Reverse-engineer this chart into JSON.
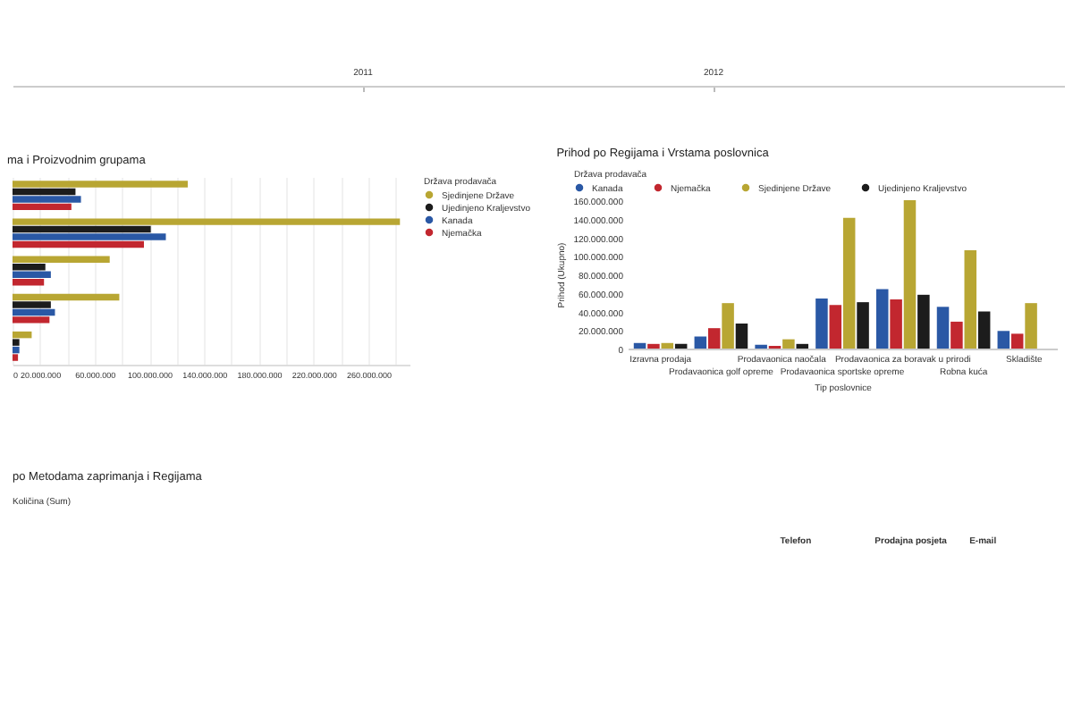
{
  "chart_data": [
    {
      "type": "other",
      "annotations": [
        "2011",
        "2012"
      ]
    },
    {
      "type": "bar",
      "orientation": "horizontal",
      "title": "ma i Proizvodnim grupama",
      "legend_title": "Država prodavača",
      "legend": "right",
      "grid": "x",
      "categories": [
        null,
        null,
        null,
        null,
        null
      ],
      "series": [
        {
          "name": "Sjedinjene Države",
          "color": "#b8a633",
          "values": [
            128000000,
            283000000,
            71000000,
            78000000,
            14000000
          ]
        },
        {
          "name": "Ujedinjeno Kraljevstvo",
          "color": "#1c1c1c",
          "values": [
            46000000,
            101000000,
            24000000,
            28000000,
            5000000
          ]
        },
        {
          "name": "Kanada",
          "color": "#2a58a5",
          "values": [
            50000000,
            112000000,
            28000000,
            31000000,
            5000000
          ]
        },
        {
          "name": "Njemačka",
          "color": "#c2272f",
          "values": [
            43000000,
            96000000,
            23000000,
            27000000,
            4000000
          ]
        }
      ],
      "xlim": [
        0,
        290000000
      ],
      "xticks": [
        {
          "value": 0,
          "label": "0"
        },
        {
          "value": 20000000,
          "label": "20.000.000"
        },
        {
          "value": 40000000,
          "label": null
        },
        {
          "value": 60000000,
          "label": "60.000.000"
        },
        {
          "value": 80000000,
          "label": null
        },
        {
          "value": 100000000,
          "label": "100.000.000"
        },
        {
          "value": 120000000,
          "label": null
        },
        {
          "value": 140000000,
          "label": "140.000.000"
        },
        {
          "value": 160000000,
          "label": null
        },
        {
          "value": 180000000,
          "label": "180.000.000"
        },
        {
          "value": 200000000,
          "label": null
        },
        {
          "value": 220000000,
          "label": "220.000.000"
        },
        {
          "value": 240000000,
          "label": null
        },
        {
          "value": 260000000,
          "label": "260.000.000"
        },
        {
          "value": 280000000,
          "label": null
        }
      ]
    },
    {
      "type": "bar",
      "title": "Prihod po Regijama i Vrstama poslovnica",
      "legend_title": "Država prodavača",
      "legend": "top",
      "ylabel": "Prihod (Ukupno)",
      "xlabel": "Tip poslovnice",
      "categories": [
        "Izravna prodaja",
        "Prodavaonica golf opreme",
        "Prodavaonica naočala",
        "Prodavaonica sportske opreme",
        "Prodavaonica za boravak u prirodi",
        "Robna kuća",
        "Skladište"
      ],
      "series": [
        {
          "name": "Kanada",
          "color": "#2a58a5",
          "values": [
            6000000,
            13000000,
            4000000,
            54000000,
            64000000,
            45000000,
            19000000
          ]
        },
        {
          "name": "Njemačka",
          "color": "#c2272f",
          "values": [
            5000000,
            22000000,
            3000000,
            47000000,
            53000000,
            29000000,
            16000000
          ]
        },
        {
          "name": "Sjedinjene Države",
          "color": "#b8a633",
          "values": [
            6000000,
            49000000,
            10000000,
            141000000,
            160000000,
            106000000,
            49000000
          ]
        },
        {
          "name": "Ujedinjeno Kraljevstvo",
          "color": "#1c1c1c",
          "values": [
            5000000,
            27000000,
            5000000,
            50000000,
            58000000,
            40000000,
            null
          ]
        }
      ],
      "ylim": [
        0,
        160000000
      ],
      "yticks": [
        {
          "value": 0,
          "label": "0"
        },
        {
          "value": 20000000,
          "label": "20.000.000"
        },
        {
          "value": 40000000,
          "label": "40.000.000"
        },
        {
          "value": 60000000,
          "label": "60.000.000"
        },
        {
          "value": 80000000,
          "label": "80.000.000"
        },
        {
          "value": 100000000,
          "label": "100.000.000"
        },
        {
          "value": 120000000,
          "label": "120.000.000"
        },
        {
          "value": 140000000,
          "label": "140.000.000"
        },
        {
          "value": 160000000,
          "label": "160.000.000"
        }
      ]
    },
    {
      "type": "other",
      "title": "po Metodama zaprimanja i Regijama",
      "clabel": "Količina (Sum)",
      "annotations": [
        "Telefon",
        "Prodajna posjeta",
        "E-mail"
      ]
    }
  ]
}
